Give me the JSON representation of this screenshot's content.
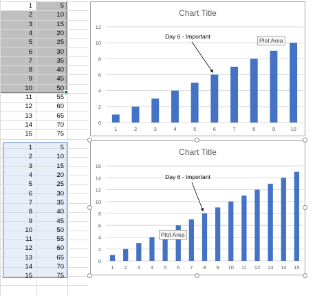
{
  "sheet": {
    "rows": [
      {
        "a": "1",
        "b": "5"
      },
      {
        "a": "2",
        "b": "10"
      },
      {
        "a": "3",
        "b": "15"
      },
      {
        "a": "4",
        "b": "20"
      },
      {
        "a": "5",
        "b": "25"
      },
      {
        "a": "6",
        "b": "30"
      },
      {
        "a": "7",
        "b": "35"
      },
      {
        "a": "8",
        "b": "40"
      },
      {
        "a": "9",
        "b": "45"
      },
      {
        "a": "10",
        "b": "50"
      },
      {
        "a": "11",
        "b": "55"
      },
      {
        "a": "12",
        "b": "60"
      },
      {
        "a": "13",
        "b": "65"
      },
      {
        "a": "14",
        "b": "70"
      },
      {
        "a": "15",
        "b": "75"
      }
    ],
    "rows2": [
      {
        "a": "1",
        "b": "5"
      },
      {
        "a": "2",
        "b": "10"
      },
      {
        "a": "3",
        "b": "15"
      },
      {
        "a": "4",
        "b": "20"
      },
      {
        "a": "5",
        "b": "25"
      },
      {
        "a": "6",
        "b": "30"
      },
      {
        "a": "7",
        "b": "35"
      },
      {
        "a": "8",
        "b": "40"
      },
      {
        "a": "9",
        "b": "45"
      },
      {
        "a": "10",
        "b": "50"
      },
      {
        "a": "11",
        "b": "55"
      },
      {
        "a": "12",
        "b": "60"
      },
      {
        "a": "13",
        "b": "65"
      },
      {
        "a": "14",
        "b": "70"
      },
      {
        "a": "15",
        "b": "75"
      }
    ]
  },
  "charts": {
    "top": {
      "title": "Chart Title",
      "annotation": "Day 6 - Important",
      "tooltip": "Plot Area"
    },
    "bottom": {
      "title": "Chart Title",
      "annotation": "Day 6 - Important",
      "tooltip": "Plot Area"
    }
  },
  "colors": {
    "bar": "#4472c4",
    "grid": "#d9d9d9",
    "axis_text": "#595959"
  },
  "chart_data": [
    {
      "type": "bar",
      "title": "Chart Title",
      "categories": [
        "1",
        "2",
        "3",
        "4",
        "5",
        "6",
        "7",
        "8",
        "9",
        "10"
      ],
      "values": [
        1,
        2,
        3,
        4,
        5,
        6,
        7,
        8,
        9,
        10
      ],
      "ylim": [
        0,
        12
      ],
      "yticks": [
        0,
        2,
        4,
        6,
        8,
        10,
        12
      ],
      "grid": true,
      "annotations": [
        {
          "text": "Day 6 - Important",
          "category": "6"
        }
      ]
    },
    {
      "type": "bar",
      "title": "Chart Title",
      "categories": [
        "1",
        "2",
        "3",
        "4",
        "5",
        "6",
        "7",
        "8",
        "9",
        "10",
        "11",
        "12",
        "13",
        "14",
        "15"
      ],
      "values": [
        1,
        2,
        3,
        4,
        5,
        6,
        7,
        8,
        9,
        10,
        11,
        12,
        13,
        14,
        15
      ],
      "ylim": [
        0,
        16
      ],
      "yticks": [
        0,
        2,
        4,
        6,
        8,
        10,
        12,
        14,
        16
      ],
      "grid": true,
      "annotations": [
        {
          "text": "Day 6 - Important",
          "category": "8"
        }
      ]
    }
  ]
}
